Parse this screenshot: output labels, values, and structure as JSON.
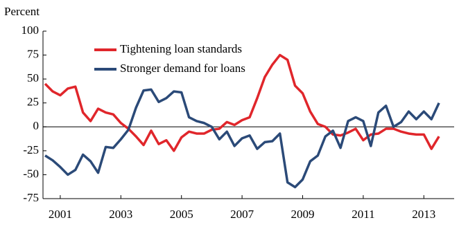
{
  "chart_data": {
    "type": "line",
    "y_label": "Percent",
    "x": [
      2000.5,
      2000.75,
      2001,
      2001.25,
      2001.5,
      2001.75,
      2002,
      2002.25,
      2002.5,
      2002.75,
      2003,
      2003.25,
      2003.5,
      2003.75,
      2004,
      2004.25,
      2004.5,
      2004.75,
      2005,
      2005.25,
      2005.5,
      2005.75,
      2006,
      2006.25,
      2006.5,
      2006.75,
      2007,
      2007.25,
      2007.5,
      2007.75,
      2008,
      2008.25,
      2008.5,
      2008.75,
      2009,
      2009.25,
      2009.5,
      2009.75,
      2010,
      2010.25,
      2010.5,
      2010.75,
      2011,
      2011.25,
      2011.5,
      2011.75,
      2012,
      2012.25,
      2012.5,
      2012.75,
      2013,
      2013.25,
      2013.5
    ],
    "series": [
      {
        "name": "Tightening loan standards",
        "color": "#e0262b",
        "values": [
          45,
          37,
          33,
          40,
          42,
          15,
          6,
          19,
          15,
          13,
          4,
          -2,
          -10,
          -19,
          -4,
          -18,
          -14,
          -25,
          -11,
          -5,
          -7,
          -7,
          -3,
          -2,
          5,
          2,
          7,
          10,
          30,
          52,
          65,
          75,
          70,
          43,
          35,
          16,
          3,
          0,
          -8,
          -9,
          -6,
          -2,
          -14,
          -8,
          -7,
          -2,
          -2,
          -5,
          -7,
          -8,
          -8,
          -23,
          -10
        ]
      },
      {
        "name": "Stronger demand for loans",
        "color": "#2b4a78",
        "values": [
          -30,
          -35,
          -42,
          -50,
          -45,
          -29,
          -36,
          -48,
          -21,
          -22,
          -13,
          -3,
          20,
          38,
          39,
          26,
          30,
          37,
          36,
          10,
          6,
          4,
          0,
          -13,
          -5,
          -20,
          -12,
          -9,
          -23,
          -16,
          -15,
          -7,
          -58,
          -63,
          -55,
          -36,
          -30,
          -10,
          -4,
          -22,
          6,
          10,
          6,
          -20,
          15,
          22,
          0,
          5,
          16,
          8,
          16,
          8,
          25
        ]
      }
    ],
    "xlim": [
      2000.43,
      2014
    ],
    "xticks": [
      2001,
      2003,
      2005,
      2007,
      2009,
      2011,
      2013
    ],
    "ylim": [
      -75,
      100
    ],
    "yticks": [
      -75,
      -50,
      -25,
      0,
      25,
      50,
      75,
      100
    ]
  }
}
